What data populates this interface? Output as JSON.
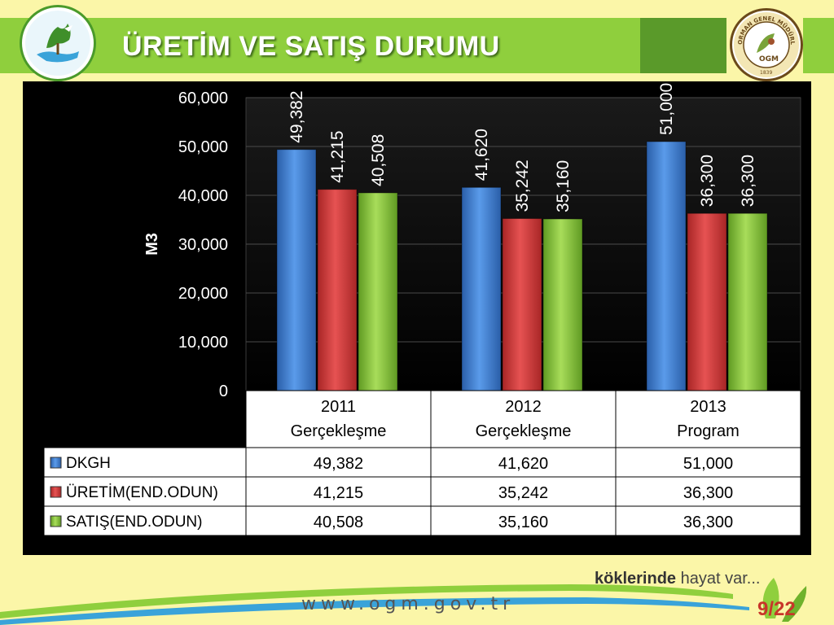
{
  "slide": {
    "title": "ÜRETİM VE SATIŞ DURUMU",
    "footer_url": "www.ogm.gov.tr",
    "slogan_bold": "köklerinde",
    "slogan_rest": " hayat var...",
    "page_number": "9/22",
    "logo_right_text": "ORMAN GENEL MÜDÜRLÜĞÜ",
    "logo_right_abbr": "OGM",
    "logo_right_year": "1839"
  },
  "colors": {
    "header_green": "#8fcf3d",
    "dkgh": "#3b7bd4",
    "uretim": "#d63a3a",
    "satis": "#8cc63f"
  },
  "chart_data": {
    "type": "bar",
    "ylabel": "M3",
    "ylim": [
      0,
      60000
    ],
    "yticks": [
      "0",
      "10,000",
      "20,000",
      "30,000",
      "40,000",
      "50,000",
      "60,000"
    ],
    "categories": [
      [
        "2011",
        "Gerçekleşme"
      ],
      [
        "2012",
        "Gerçekleşme"
      ],
      [
        "2013",
        "Program"
      ]
    ],
    "series": [
      {
        "name": "DKGH",
        "values": [
          49382,
          41620,
          51000
        ],
        "labels": [
          "49,382",
          "41,620",
          "51,000"
        ],
        "color": "#3b7bd4"
      },
      {
        "name": "ÜRETİM(END.ODUN)",
        "values": [
          41215,
          35242,
          36300
        ],
        "labels": [
          "41,215",
          "35,242",
          "36,300"
        ],
        "color": "#d63a3a"
      },
      {
        "name": "SATIŞ(END.ODUN)",
        "values": [
          40508,
          35160,
          36300
        ],
        "labels": [
          "40,508",
          "35,160",
          "36,300"
        ],
        "color": "#8cc63f"
      }
    ],
    "grid": true,
    "legend": "data-table"
  }
}
